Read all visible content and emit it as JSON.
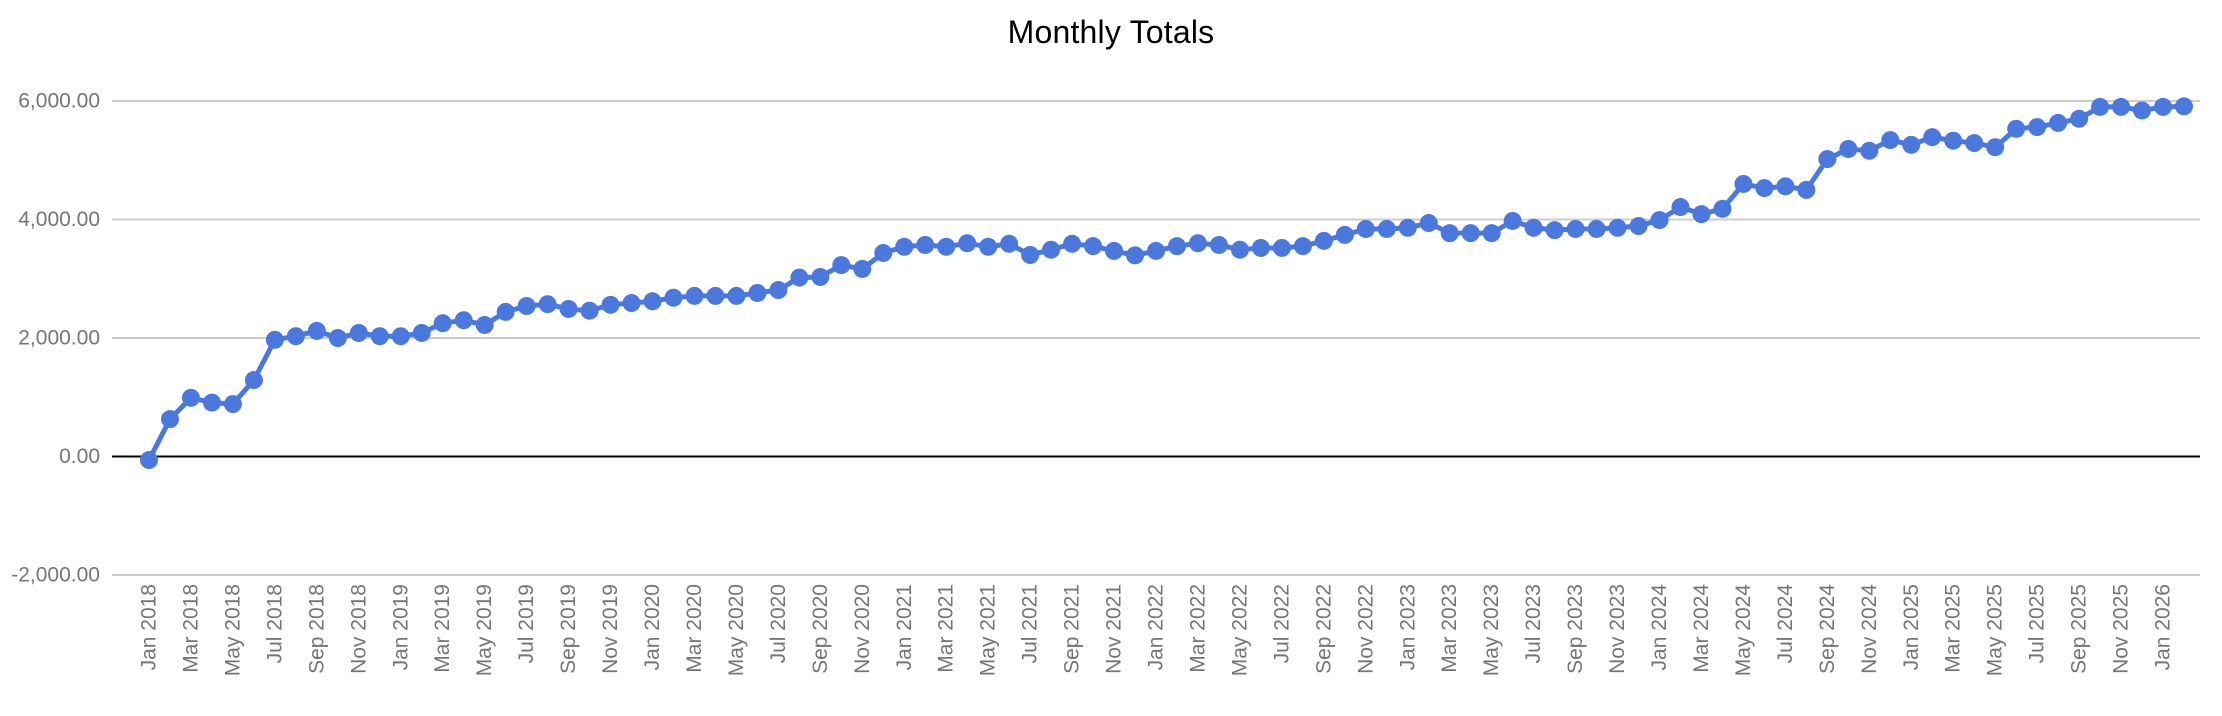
{
  "chart_data": {
    "type": "line",
    "title": "Monthly Totals",
    "legend": "none",
    "grid": true,
    "ylim": [
      -2000,
      6000
    ],
    "y_ticks": [
      -2000,
      0,
      2000,
      4000,
      6000
    ],
    "y_tick_labels": [
      "-2,000.00",
      "0.00",
      "2,000.00",
      "4,000.00",
      "6,000.00"
    ],
    "x_tick_labels": [
      "Jan 2018",
      "Mar 2018",
      "May 2018",
      "Jul 2018",
      "Sep 2018",
      "Nov 2018",
      "Jan 2019",
      "Mar 2019",
      "May 2019",
      "Jul 2019",
      "Sep 2019",
      "Nov 2019",
      "Jan 2020",
      "Mar 2020",
      "May 2020",
      "Jul 2020",
      "Sep 2020",
      "Nov 2020",
      "Jan 2021",
      "Mar 2021",
      "May 2021",
      "Jul 2021",
      "Sep 2021",
      "Nov 2021",
      "Jan 2022",
      "Mar 2022",
      "May 2022",
      "Jul 2022",
      "Sep 2022",
      "Nov 2022",
      "Jan 2023",
      "Mar 2023",
      "May 2023",
      "Jul 2023",
      "Sep 2023",
      "Nov 2023",
      "Jan 2024",
      "Mar 2024",
      "May 2024",
      "Jul 2024",
      "Sep 2024",
      "Nov 2024",
      "Jan 2025",
      "Mar 2025",
      "May 2025",
      "Jul 2025",
      "Sep 2025",
      "Nov 2025",
      "Jan 2026"
    ],
    "x": [
      "Jan 2018",
      "Feb 2018",
      "Mar 2018",
      "Apr 2018",
      "May 2018",
      "Jun 2018",
      "Jul 2018",
      "Aug 2018",
      "Sep 2018",
      "Oct 2018",
      "Nov 2018",
      "Dec 2018",
      "Jan 2019",
      "Feb 2019",
      "Mar 2019",
      "Apr 2019",
      "May 2019",
      "Jun 2019",
      "Jul 2019",
      "Aug 2019",
      "Sep 2019",
      "Oct 2019",
      "Nov 2019",
      "Dec 2019",
      "Jan 2020",
      "Feb 2020",
      "Mar 2020",
      "Apr 2020",
      "May 2020",
      "Jun 2020",
      "Jul 2020",
      "Aug 2020",
      "Sep 2020",
      "Oct 2020",
      "Nov 2020",
      "Dec 2020",
      "Jan 2021",
      "Feb 2021",
      "Mar 2021",
      "Apr 2021",
      "May 2021",
      "Jun 2021",
      "Jul 2021",
      "Aug 2021",
      "Sep 2021",
      "Oct 2021",
      "Nov 2021",
      "Dec 2021",
      "Jan 2022",
      "Feb 2022",
      "Mar 2022",
      "Apr 2022",
      "May 2022",
      "Jun 2022",
      "Jul 2022",
      "Aug 2022",
      "Sep 2022",
      "Oct 2022",
      "Nov 2022",
      "Dec 2022",
      "Jan 2023",
      "Feb 2023",
      "Mar 2023",
      "Apr 2023",
      "May 2023",
      "Jun 2023",
      "Jul 2023",
      "Aug 2023",
      "Sep 2023",
      "Oct 2023",
      "Nov 2023",
      "Dec 2023",
      "Jan 2024",
      "Feb 2024",
      "Mar 2024",
      "Apr 2024",
      "May 2024",
      "Jun 2024",
      "Jul 2024",
      "Aug 2024",
      "Sep 2024",
      "Oct 2024",
      "Nov 2024",
      "Dec 2024",
      "Jan 2025",
      "Feb 2025",
      "Mar 2025",
      "Apr 2025",
      "May 2025",
      "Jun 2025",
      "Jul 2025",
      "Aug 2025",
      "Sep 2025",
      "Oct 2025",
      "Nov 2025",
      "Dec 2025",
      "Jan 2026",
      "Feb 2026"
    ],
    "series": [
      {
        "name": "Monthly Totals",
        "values": [
          -60,
          630,
          990,
          910,
          885,
          1290,
          1970,
          2030,
          2120,
          2000,
          2085,
          2030,
          2030,
          2085,
          2250,
          2300,
          2220,
          2440,
          2540,
          2570,
          2490,
          2460,
          2560,
          2590,
          2620,
          2680,
          2710,
          2710,
          2710,
          2760,
          2810,
          3020,
          3030,
          3230,
          3165,
          3435,
          3540,
          3570,
          3540,
          3600,
          3540,
          3590,
          3400,
          3490,
          3590,
          3550,
          3470,
          3395,
          3470,
          3550,
          3600,
          3570,
          3490,
          3520,
          3520,
          3550,
          3640,
          3740,
          3840,
          3840,
          3860,
          3940,
          3770,
          3770,
          3770,
          3975,
          3860,
          3820,
          3840,
          3840,
          3860,
          3890,
          3990,
          4210,
          4090,
          4180,
          4600,
          4530,
          4560,
          4500,
          5020,
          5190,
          5160,
          5340,
          5260,
          5390,
          5330,
          5290,
          5220,
          5530,
          5560,
          5630,
          5700,
          5900,
          5900,
          5840,
          5900,
          5910
        ]
      }
    ],
    "colors": {
      "line": "#4b78dc",
      "grid": "#cccccc",
      "zero_line": "#000000",
      "axis_text": "#757575",
      "title": "#000000",
      "background": "#ffffff"
    }
  }
}
